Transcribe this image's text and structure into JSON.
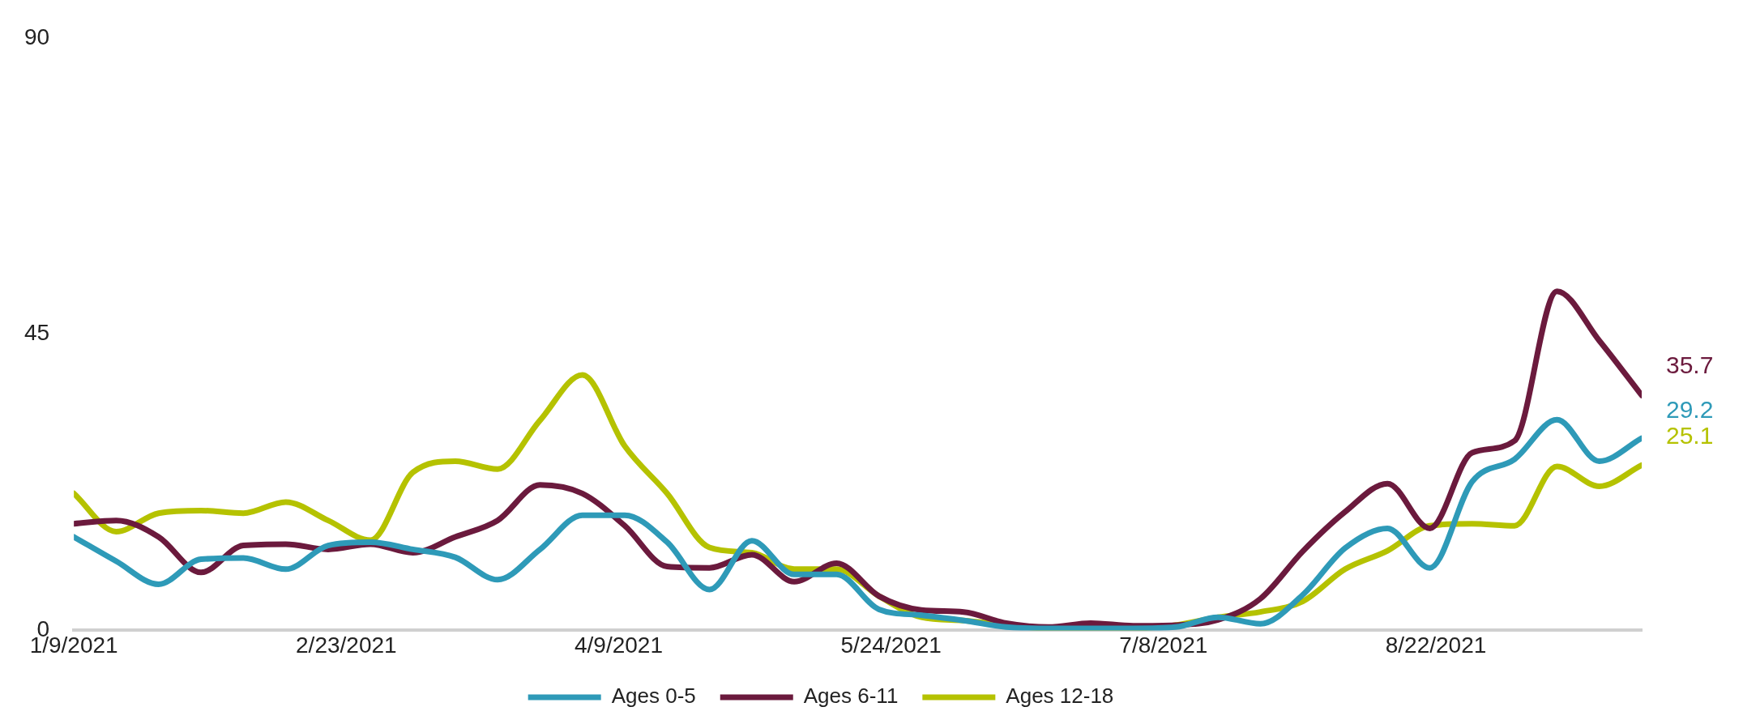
{
  "chart_data": {
    "type": "line",
    "x": [
      "2021-01-09",
      "2021-01-16",
      "2021-01-23",
      "2021-01-30",
      "2021-02-06",
      "2021-02-13",
      "2021-02-20",
      "2021-02-27",
      "2021-03-06",
      "2021-03-13",
      "2021-03-20",
      "2021-03-27",
      "2021-04-03",
      "2021-04-10",
      "2021-04-17",
      "2021-04-24",
      "2021-05-01",
      "2021-05-08",
      "2021-05-15",
      "2021-05-22",
      "2021-05-29",
      "2021-06-05",
      "2021-06-12",
      "2021-06-19",
      "2021-06-26",
      "2021-07-03",
      "2021-07-10",
      "2021-07-17",
      "2021-07-24",
      "2021-07-31",
      "2021-08-07",
      "2021-08-14",
      "2021-08-21",
      "2021-08-28",
      "2021-09-04",
      "2021-09-11",
      "2021-09-18",
      "2021-09-25"
    ],
    "series": [
      {
        "name": "Ages 0-5",
        "color": "#2e9ab8",
        "values": [
          14.2,
          10.5,
          7.0,
          10.8,
          11,
          9.3,
          12.9,
          13.4,
          12.3,
          11.1,
          7.7,
          12.3,
          17.5,
          17.5,
          13.4,
          6.2,
          13.6,
          8.5,
          8.5,
          3.2,
          2.3,
          1.5,
          0.5,
          0.3,
          0.3,
          0.3,
          0.5,
          2,
          1.0,
          5.4,
          12.5,
          15.5,
          9.5,
          22.6,
          26,
          32,
          25.7,
          29.2
        ],
        "value_labels": [
          null,
          null,
          null,
          null,
          null,
          null,
          null,
          null,
          null,
          null,
          null,
          null,
          null,
          null,
          null,
          null,
          null,
          null,
          null,
          null,
          null,
          null,
          null,
          null,
          null,
          null,
          null,
          null,
          null,
          null,
          null,
          null,
          null,
          null,
          null,
          null,
          null,
          "29.2"
        ]
      },
      {
        "name": "Ages 6-11",
        "color": "#6b1a3d",
        "values": [
          16.2,
          16.7,
          14.2,
          8.8,
          12.9,
          13.1,
          12.3,
          13.1,
          11.8,
          14.2,
          16.7,
          22.1,
          20.8,
          15.9,
          9.7,
          9.5,
          11.5,
          7.4,
          10.2,
          5.2,
          3.1,
          2.8,
          1.1,
          0.5,
          1.1,
          0.7,
          0.8,
          1.6,
          4.8,
          12,
          18,
          22.3,
          15.5,
          27,
          28.8,
          51.5,
          44,
          35.7
        ],
        "value_labels": [
          null,
          null,
          null,
          null,
          null,
          null,
          null,
          null,
          null,
          null,
          null,
          null,
          null,
          null,
          null,
          null,
          null,
          null,
          null,
          null,
          null,
          null,
          null,
          null,
          null,
          null,
          null,
          null,
          null,
          null,
          null,
          null,
          null,
          null,
          null,
          null,
          null,
          "35.7"
        ]
      },
      {
        "name": "Ages 12-18",
        "color": "#b5c200",
        "values": [
          20.8,
          15,
          17.8,
          18.2,
          17.8,
          19.5,
          16.7,
          13.7,
          24,
          25.7,
          24.5,
          31.9,
          38.8,
          28,
          20.8,
          12.6,
          11.8,
          9.3,
          9.3,
          5.2,
          2,
          1.5,
          0.8,
          0.3,
          0.3,
          0.3,
          0.8,
          2,
          2.8,
          4.4,
          9.3,
          12.1,
          15.9,
          16.2,
          15.9,
          24.9,
          21.9,
          25.1
        ],
        "value_labels": [
          null,
          null,
          null,
          null,
          null,
          null,
          null,
          null,
          null,
          null,
          null,
          null,
          null,
          null,
          null,
          null,
          null,
          null,
          null,
          null,
          null,
          null,
          null,
          null,
          null,
          null,
          null,
          null,
          null,
          null,
          null,
          null,
          null,
          null,
          null,
          null,
          null,
          "25.1"
        ]
      }
    ],
    "xlim": [
      "2021-01-09",
      "2021-09-25"
    ],
    "xticks": [
      {
        "value": "2021-01-09",
        "label": "1/9/2021"
      },
      {
        "value": "2021-02-23",
        "label": "2/23/2021"
      },
      {
        "value": "2021-04-09",
        "label": "4/9/2021"
      },
      {
        "value": "2021-05-24",
        "label": "5/24/2021"
      },
      {
        "value": "2021-07-08",
        "label": "7/8/2021"
      },
      {
        "value": "2021-08-22",
        "label": "8/22/2021"
      }
    ],
    "ylim": [
      0,
      90
    ],
    "yticks": [
      0,
      45,
      90
    ],
    "grid": false,
    "legend": "bottom",
    "marker": "none",
    "line_style": "solid"
  }
}
